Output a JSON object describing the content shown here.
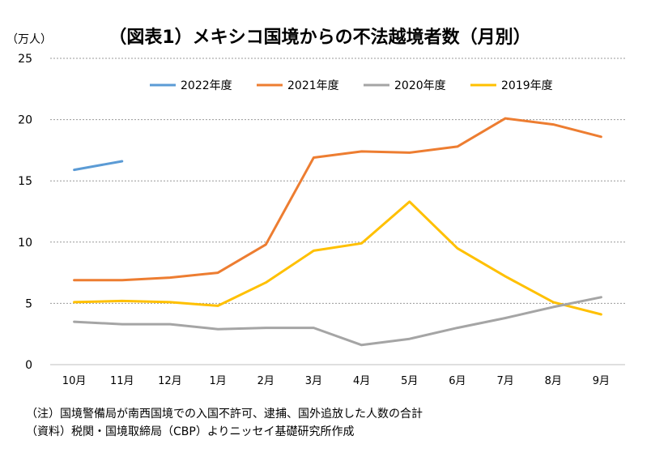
{
  "chart_data": {
    "type": "line",
    "title": "（図表1）メキシコ国境からの不法越境者数（月別）",
    "ylabel": "（万人）",
    "xlabel": "",
    "categories": [
      "10月",
      "11月",
      "12月",
      "1月",
      "2月",
      "3月",
      "4月",
      "5月",
      "6月",
      "7月",
      "8月",
      "9月"
    ],
    "ylim": [
      0,
      25
    ],
    "yticks": [
      "0",
      "5",
      "10",
      "15",
      "20",
      "25"
    ],
    "grid": true,
    "legend_position": "top",
    "series": [
      {
        "name": "2022年度",
        "color": "#5B9BD5",
        "values": [
          15.9,
          16.6,
          null,
          null,
          null,
          null,
          null,
          null,
          null,
          null,
          null,
          null
        ]
      },
      {
        "name": "2021年度",
        "color": "#ED7D31",
        "values": [
          6.9,
          6.9,
          7.1,
          7.5,
          9.8,
          16.9,
          17.4,
          17.3,
          17.8,
          20.1,
          19.6,
          18.6
        ]
      },
      {
        "name": "2020年度",
        "color": "#A5A5A5",
        "values": [
          3.5,
          3.3,
          3.3,
          2.9,
          3.0,
          3.0,
          1.6,
          2.1,
          3.0,
          3.8,
          4.7,
          5.5
        ]
      },
      {
        "name": "2019年度",
        "color": "#FFC000",
        "values": [
          5.1,
          5.2,
          5.1,
          4.8,
          6.7,
          9.3,
          9.9,
          13.3,
          9.5,
          7.2,
          5.1,
          4.1
        ]
      }
    ]
  },
  "notes": [
    "（注）国境警備局が南西国境での入国不許可、逮捕、国外追放した人数の合計",
    "（資料）税関・国境取締局（CBP）よりニッセイ基礎研究所作成"
  ]
}
